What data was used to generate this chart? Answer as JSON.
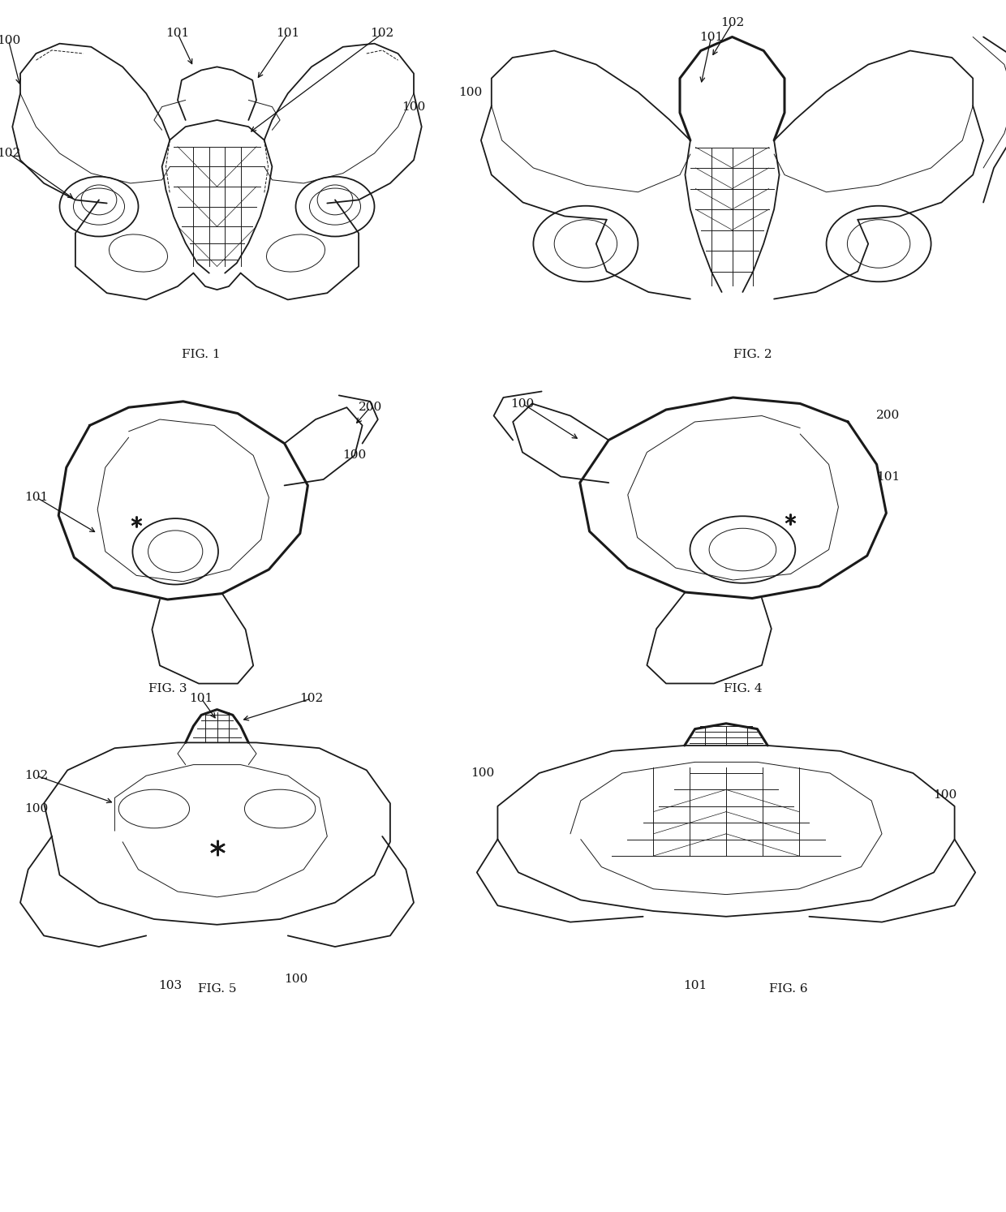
{
  "background_color": "#ffffff",
  "line_color": "#1a1a1a",
  "text_color": "#111111",
  "lw_main": 1.3,
  "lw_thick": 2.2,
  "lw_thin": 0.7,
  "fig_label_fontsize": 11,
  "ref_fontsize": 11,
  "regions": {
    "fig1": [
      25,
      45,
      510,
      455
    ],
    "fig2": [
      580,
      30,
      1225,
      455
    ],
    "fig3": [
      25,
      495,
      505,
      865
    ],
    "fig4": [
      565,
      490,
      1155,
      865
    ],
    "fig5": [
      25,
      895,
      510,
      1235
    ],
    "fig6": [
      575,
      895,
      1215,
      1235
    ]
  }
}
